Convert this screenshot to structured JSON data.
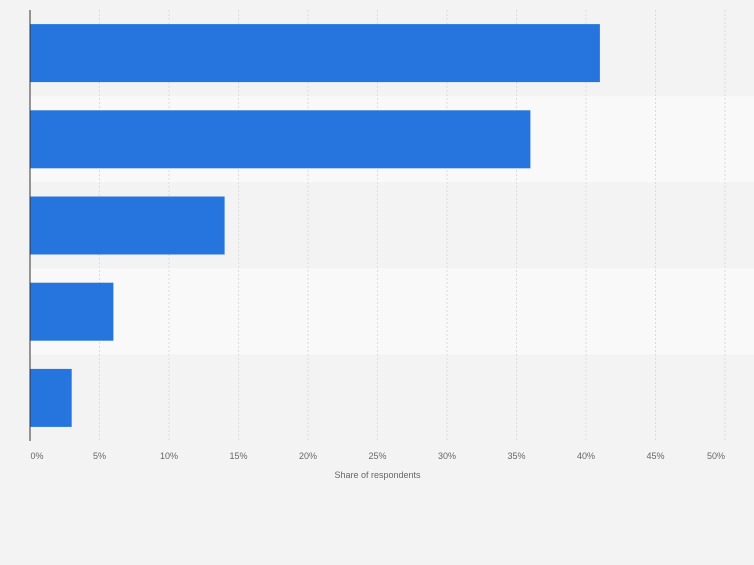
{
  "chart_data": {
    "type": "bar",
    "orientation": "horizontal",
    "categories": [
      "",
      "",
      "",
      "",
      ""
    ],
    "values": [
      41,
      36,
      14,
      6,
      3
    ],
    "title": "",
    "xlabel": "Share of respondents",
    "ylabel": "",
    "xlim": [
      0,
      50
    ],
    "ticks": [
      "0%",
      "5%",
      "10%",
      "15%",
      "20%",
      "25%",
      "30%",
      "35%",
      "40%",
      "45%",
      "50%"
    ],
    "grid": true,
    "legend": "none",
    "colors": {
      "bar": "#2675de",
      "band_dark": "#f3f3f3",
      "band_light": "#f9f9f9",
      "gridline": "#dcdcdc",
      "axis": "#333333",
      "label": "#666666"
    }
  }
}
